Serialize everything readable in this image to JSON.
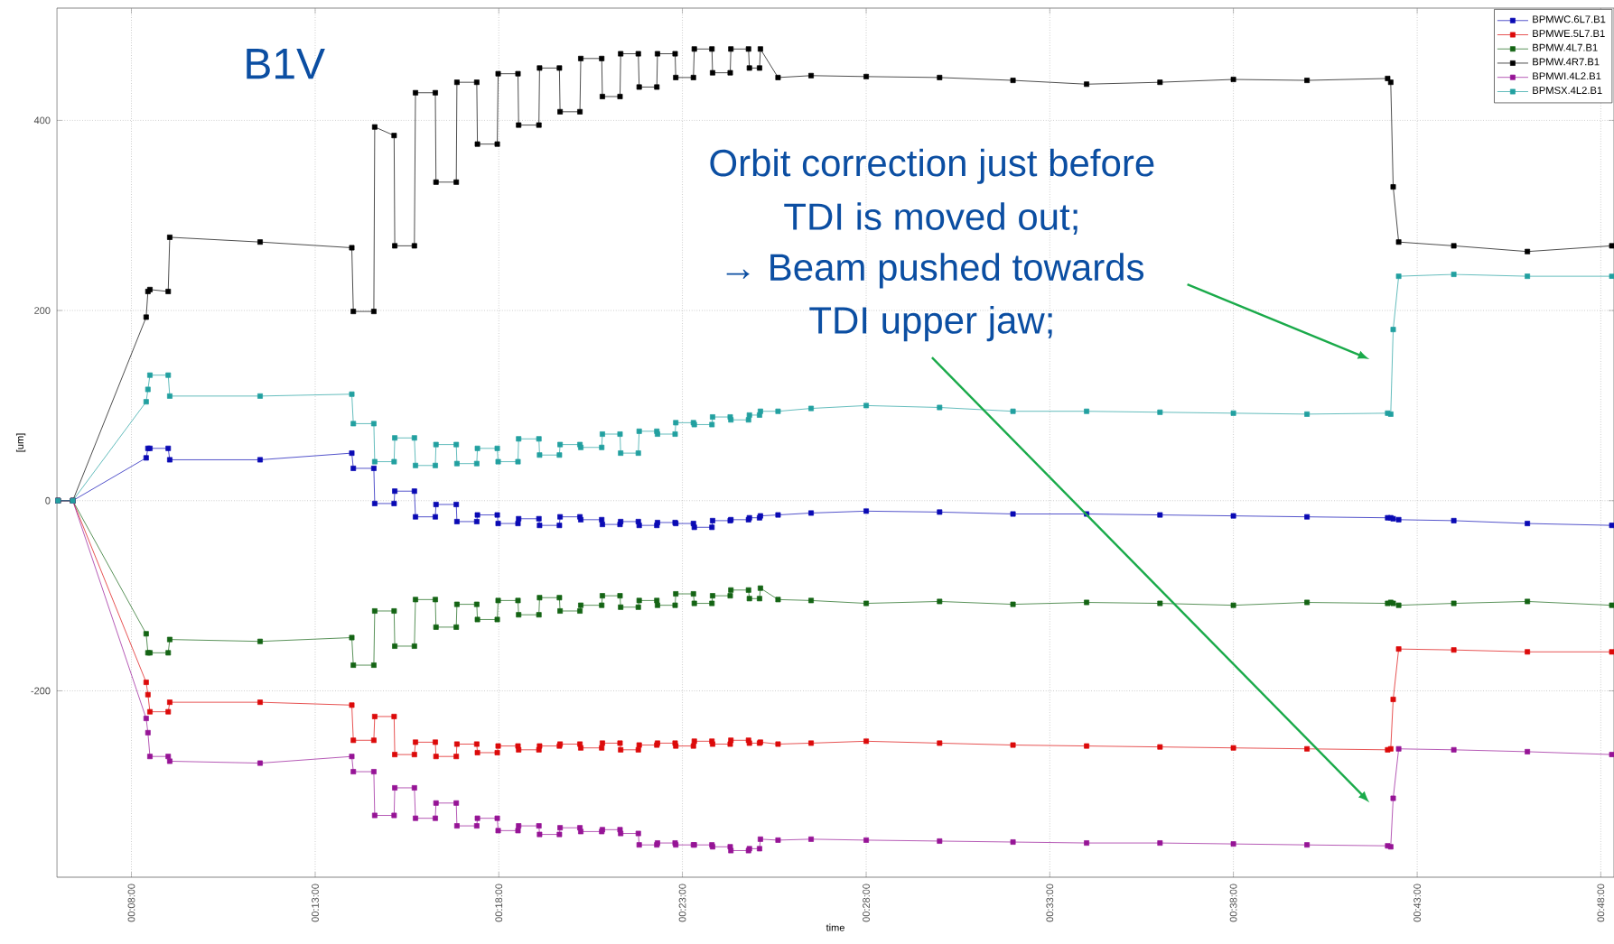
{
  "chart_data": {
    "type": "line",
    "xlabel": "time",
    "ylabel": "[um]",
    "annotations": [
      "B1V",
      "Orbit correction just before",
      "TDI is moved out;",
      "→ Beam pushed towards",
      "TDI upper jaw;"
    ],
    "x": [
      0.1,
      0.1067,
      0.14,
      0.1408,
      0.1417,
      0.15,
      0.1507,
      0.1917,
      0.2333,
      0.234,
      0.2433,
      0.2437,
      0.2525,
      0.2528,
      0.2617,
      0.2622,
      0.2712,
      0.2715,
      0.2807,
      0.281,
      0.29,
      0.2903,
      0.2993,
      0.2997,
      0.3087,
      0.309,
      0.3182,
      0.3185,
      0.3275,
      0.3278,
      0.3368,
      0.3372,
      0.3467,
      0.347,
      0.355,
      0.3553,
      0.3633,
      0.3637,
      0.3717,
      0.372,
      0.38,
      0.3803,
      0.3883,
      0.3887,
      0.3967,
      0.397,
      0.405,
      0.4053,
      0.4133,
      0.4137,
      0.4183,
      0.4187,
      0.4267,
      0.4417,
      0.4667,
      0.5,
      0.5333,
      0.5667,
      0.6,
      0.6333,
      0.6667,
      0.7033,
      0.7047,
      0.7058,
      0.7083,
      0.7333,
      0.7667,
      0.805
    ],
    "series": [
      {
        "name": "BPMWC.6L7.B1",
        "color": "#0a0ab4",
        "values": [
          0,
          0,
          45,
          55,
          55,
          55,
          43,
          43,
          50,
          34,
          34,
          -3,
          -3,
          10,
          10,
          -17,
          -17,
          -4,
          -4,
          -22,
          -22,
          -15,
          -15,
          -24,
          -24,
          -19,
          -19,
          -26,
          -26,
          -17,
          -17,
          -20,
          -20,
          -25,
          -25,
          -22,
          -22,
          -26,
          -26,
          -23,
          -23,
          -24,
          -24,
          -28,
          -28,
          -21,
          -21,
          -20,
          -20,
          -18,
          -18,
          -16,
          -15,
          -13,
          -11,
          -12,
          -14,
          -14,
          -15,
          -16,
          -17,
          -18,
          -18,
          -19,
          -20,
          -21,
          -24,
          -26
        ]
      },
      {
        "name": "BPMWE.5L7.B1",
        "color": "#dc0a0a",
        "values": [
          0,
          0,
          -191,
          -204,
          -222,
          -222,
          -212,
          -212,
          -215,
          -252,
          -252,
          -227,
          -227,
          -267,
          -267,
          -254,
          -254,
          -269,
          -269,
          -256,
          -256,
          -265,
          -265,
          -258,
          -258,
          -262,
          -262,
          -258,
          -258,
          -256,
          -256,
          -260,
          -260,
          -255,
          -255,
          -262,
          -262,
          -257,
          -257,
          -255,
          -255,
          -258,
          -258,
          -253,
          -253,
          -256,
          -256,
          -252,
          -252,
          -255,
          -255,
          -254,
          -256,
          -255,
          -253,
          -255,
          -257,
          -258,
          -259,
          -260,
          -261,
          -262,
          -261,
          -209,
          -156,
          -157,
          -159,
          -159
        ]
      },
      {
        "name": "BPMW.4L7.B1",
        "color": "#146414",
        "values": [
          0,
          0,
          -140,
          -160,
          -160,
          -160,
          -146,
          -148,
          -144,
          -173,
          -173,
          -116,
          -116,
          -153,
          -153,
          -104,
          -104,
          -133,
          -133,
          -109,
          -109,
          -125,
          -125,
          -105,
          -105,
          -120,
          -120,
          -102,
          -102,
          -116,
          -116,
          -110,
          -110,
          -100,
          -100,
          -112,
          -112,
          -105,
          -105,
          -110,
          -110,
          -98,
          -98,
          -108,
          -108,
          -100,
          -100,
          -94,
          -94,
          -103,
          -103,
          -92,
          -104,
          -105,
          -108,
          -106,
          -109,
          -107,
          -108,
          -110,
          -107,
          -108,
          -107,
          -108,
          -110,
          -108,
          -106,
          -110
        ]
      },
      {
        "name": "BPMW.4R7.B1",
        "color": "#000000",
        "values": [
          0,
          0,
          193,
          220,
          222,
          220,
          277,
          272,
          266,
          199,
          199,
          393,
          384,
          268,
          268,
          429,
          429,
          335,
          335,
          440,
          440,
          375,
          375,
          449,
          449,
          395,
          395,
          455,
          455,
          409,
          409,
          465,
          465,
          425,
          425,
          470,
          470,
          435,
          435,
          470,
          470,
          445,
          445,
          475,
          475,
          450,
          450,
          475,
          475,
          455,
          455,
          475,
          445,
          447,
          446,
          445,
          442,
          438,
          440,
          443,
          442,
          444,
          440,
          330,
          272,
          268,
          262,
          268
        ]
      },
      {
        "name": "BPMWI.4L2.B1",
        "color": "#961496",
        "values": [
          0,
          0,
          -229,
          -244,
          -269,
          -269,
          -274,
          -276,
          -269,
          -285,
          -285,
          -331,
          -331,
          -302,
          -302,
          -334,
          -334,
          -318,
          -318,
          -342,
          -342,
          -334,
          -334,
          -347,
          -347,
          -342,
          -342,
          -351,
          -351,
          -344,
          -344,
          -348,
          -348,
          -346,
          -346,
          -350,
          -350,
          -362,
          -362,
          -360,
          -360,
          -362,
          -362,
          -362,
          -362,
          -364,
          -364,
          -368,
          -368,
          -366,
          -366,
          -356,
          -357,
          -356,
          -357,
          -358,
          -359,
          -360,
          -360,
          -361,
          -362,
          -363,
          -364,
          -313,
          -261,
          -262,
          -264,
          -267
        ]
      },
      {
        "name": "BPMSX.4L2.B1",
        "color": "#22a0a0",
        "values": [
          0,
          0,
          104,
          117,
          132,
          132,
          110,
          110,
          112,
          81,
          81,
          41,
          41,
          66,
          66,
          37,
          37,
          59,
          59,
          39,
          39,
          55,
          55,
          41,
          41,
          65,
          65,
          48,
          48,
          59,
          59,
          56,
          56,
          70,
          70,
          50,
          50,
          73,
          73,
          70,
          70,
          82,
          82,
          80,
          80,
          88,
          88,
          85,
          85,
          90,
          90,
          94,
          94,
          97,
          100,
          98,
          94,
          94,
          93,
          92,
          91,
          92,
          91,
          180,
          236,
          238,
          236,
          236
        ]
      }
    ],
    "xlim": [
      0.0995,
      0.806
    ],
    "ylim": [
      -396,
      518
    ],
    "xticks": [
      {
        "value": 0.1333,
        "label": "00:08:00"
      },
      {
        "value": 0.2167,
        "label": "00:13:00"
      },
      {
        "value": 0.3,
        "label": "00:18:00"
      },
      {
        "value": 0.3833,
        "label": "00:23:00"
      },
      {
        "value": 0.4667,
        "label": "00:28:00"
      },
      {
        "value": 0.55,
        "label": "00:33:00"
      },
      {
        "value": 0.6333,
        "label": "00:38:00"
      },
      {
        "value": 0.7167,
        "label": "00:43:00"
      },
      {
        "value": 0.8,
        "label": "00:48:00"
      }
    ],
    "yticks": [
      -200,
      0,
      200,
      400
    ],
    "grid": true,
    "legend": "top right",
    "marker": "square",
    "line_style": "solid"
  }
}
